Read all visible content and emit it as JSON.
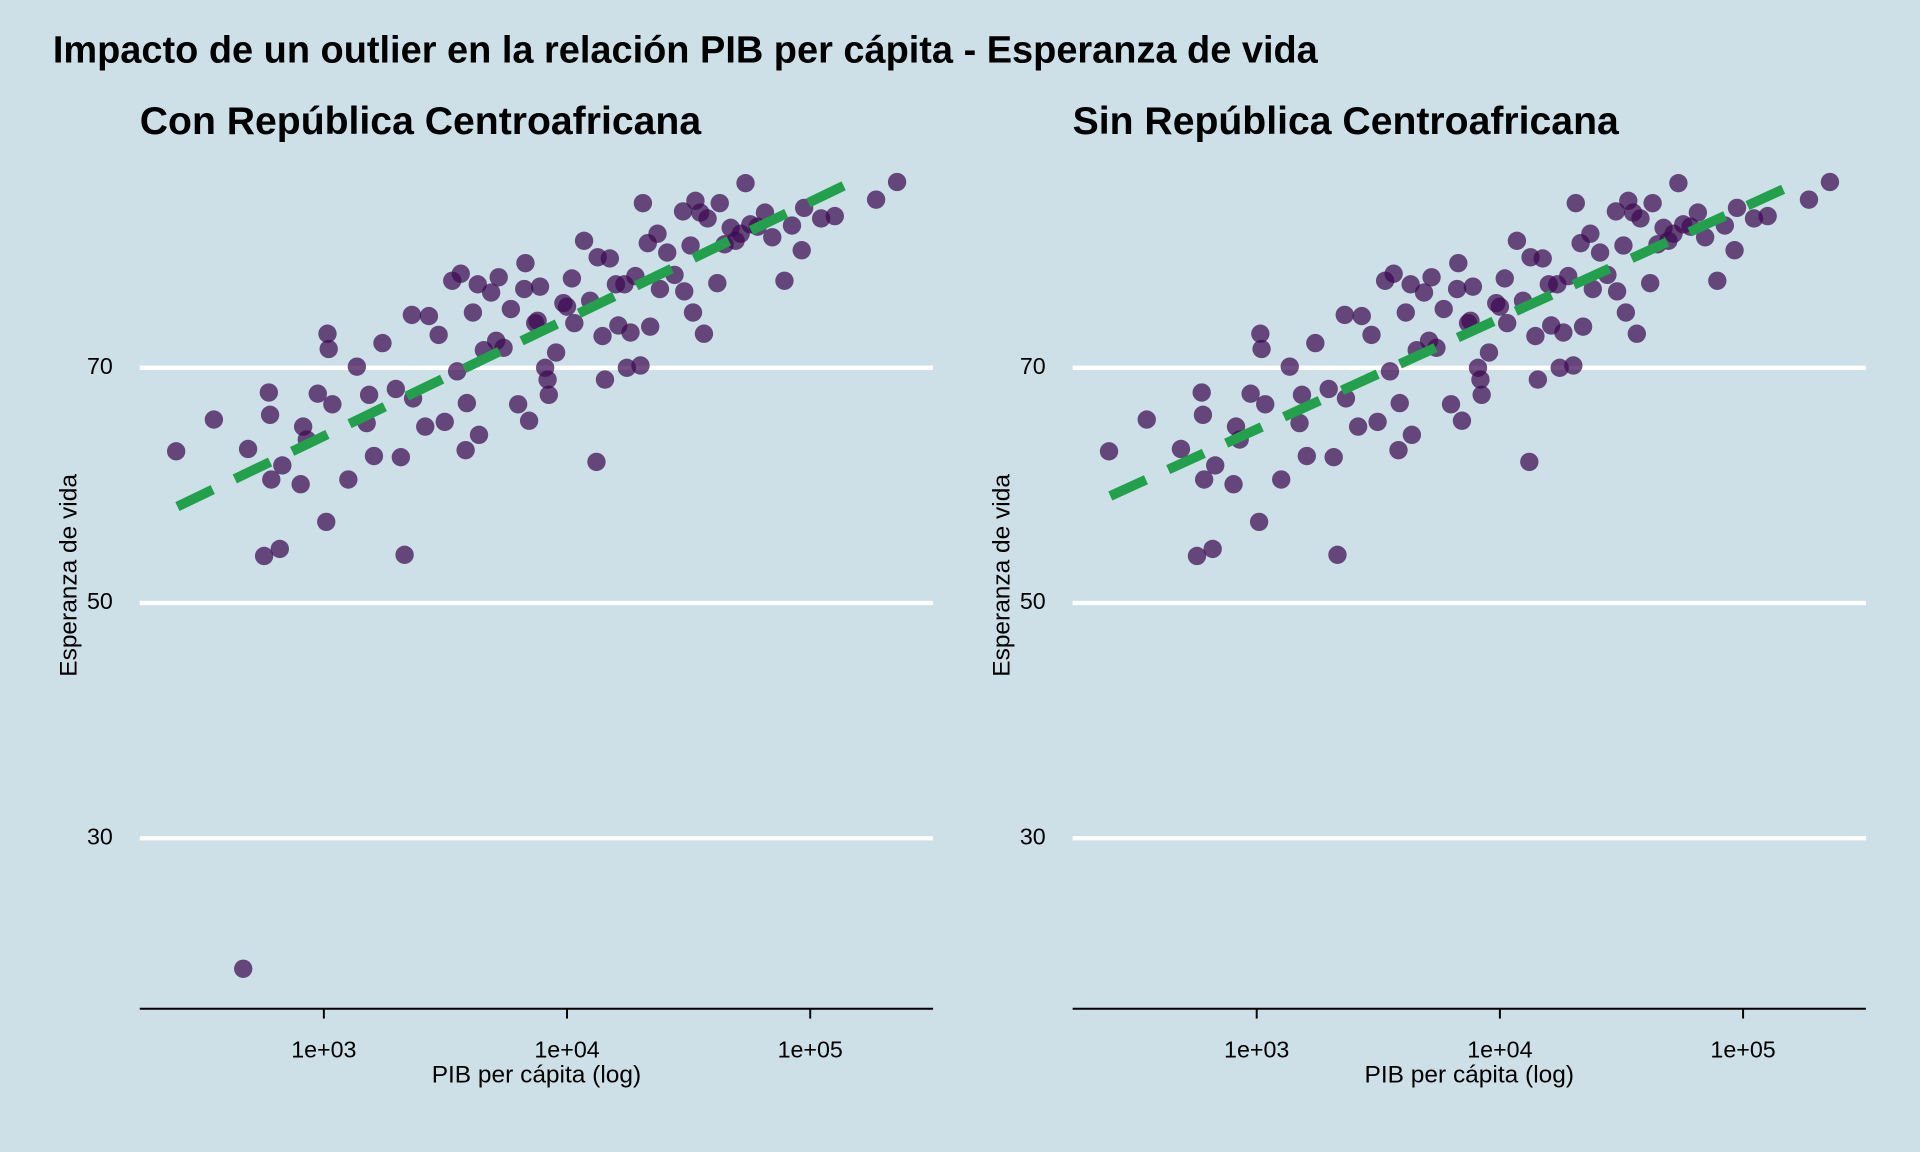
{
  "title": "Impacto de un outlier en la relación PIB per cápita - Esperanza de vida",
  "chart_data": [
    {
      "type": "scatter",
      "title": "Con República Centroafricana",
      "x_label": "PIB per cápita (log)",
      "y_label": "Esperanza de vida",
      "xscale": "log",
      "xlim": [
        175,
        320000
      ],
      "ylim": [
        15.5,
        89.2
      ],
      "xticks": [
        {
          "value": 1000,
          "label": "1e+03"
        },
        {
          "value": 10000,
          "label": "1e+04"
        },
        {
          "value": 100000,
          "label": "1e+05"
        }
      ],
      "yticks": [
        30,
        50,
        70
      ],
      "grid": true,
      "color": "#3d0a52",
      "x": [
        247,
        353,
        466,
        488,
        568,
        594,
        601,
        608,
        659,
        675,
        822,
        803,
        851,
        944,
        1023,
        1035,
        1047,
        1084,
        1261,
        1367,
        1500,
        1535,
        1607,
        1742,
        1977,
        2073,
        2148,
        2301,
        2328,
        2612,
        2704,
        2965,
        3141,
        3373,
        3532,
        3656,
        3828,
        3873,
        4102,
        4295,
        4345,
        4550,
        4875,
        5112,
        5236,
        5483,
        5875,
        6295,
        6668,
        6745,
        6982,
        7397,
        7568,
        7744,
        8128,
        8318,
        8414,
        9016,
        9660,
        10000,
        10471,
        10715,
        11749,
        12445,
        13213,
        13366,
        13996,
        14322,
        14997,
        15886,
        16255,
        17219,
        17620,
        18239,
        19099,
        20045,
        20512,
        21478,
        21979,
        23550,
        24099,
        25823,
        27669,
        29991,
        30339,
        32211,
        32961,
        33729,
        35318,
        36559,
        37844,
        41493,
        42462,
        44463,
        47098,
        49317,
        51761,
        54200,
        56750,
        60810,
        65160,
        69820,
        78340,
        84140,
        92260,
        94410,
        110900,
        126200,
        186600,
        227600
      ],
      "y": [
        62.9,
        65.6,
        18.9,
        63.1,
        54,
        67.9,
        66,
        60.5,
        54.6,
        61.7,
        65,
        60.1,
        63.9,
        67.8,
        56.9,
        72.9,
        71.6,
        66.9,
        60.5,
        70.1,
        65.3,
        67.7,
        62.5,
        72.1,
        68.2,
        62.4,
        54.1,
        74.5,
        67.4,
        65,
        74.4,
        72.8,
        65.4,
        77.4,
        69.7,
        78,
        63,
        67,
        74.7,
        77.1,
        64.3,
        71.5,
        76.4,
        72.3,
        77.7,
        71.7,
        75,
        66.9,
        76.7,
        78.9,
        65.5,
        73.8,
        74,
        76.9,
        70,
        69,
        67.7,
        71.3,
        75.5,
        75.2,
        77.6,
        73.8,
        80.8,
        75.7,
        62,
        79.4,
        72.7,
        69,
        79.3,
        77.1,
        73.6,
        77.1,
        70,
        73,
        77.8,
        70.2,
        84,
        80.6,
        73.5,
        81.4,
        76.7,
        79.8,
        77.9,
        83.3,
        76.5,
        80.4,
        74.7,
        84.2,
        83.2,
        72.9,
        82.7,
        77.2,
        84,
        80.5,
        81.9,
        80.8,
        81.4,
        85.7,
        82.2,
        82,
        83.2,
        81.1,
        77.4,
        82.1,
        80,
        83.6,
        82.7,
        82.9,
        84.3,
        85.8
      ],
      "trend": {
        "color": "#22a04c",
        "style": "dashed",
        "x": [
          250,
          148000
        ],
        "y": [
          58.2,
          85.8
        ]
      }
    },
    {
      "type": "scatter",
      "title": "Sin República Centroafricana",
      "x_label": "PIB per cápita (log)",
      "y_label": "Esperanza de vida",
      "xscale": "log",
      "xlim": [
        175,
        320000
      ],
      "ylim": [
        15.5,
        89.2
      ],
      "xticks": [
        {
          "value": 1000,
          "label": "1e+03"
        },
        {
          "value": 10000,
          "label": "1e+04"
        },
        {
          "value": 100000,
          "label": "1e+05"
        }
      ],
      "yticks": [
        30,
        50,
        70
      ],
      "grid": true,
      "color": "#3d0a52",
      "x": [
        247,
        353,
        488,
        568,
        594,
        601,
        608,
        659,
        675,
        822,
        803,
        851,
        944,
        1023,
        1035,
        1047,
        1084,
        1261,
        1367,
        1500,
        1535,
        1607,
        1742,
        1977,
        2073,
        2148,
        2301,
        2328,
        2612,
        2704,
        2965,
        3141,
        3373,
        3532,
        3656,
        3828,
        3873,
        4102,
        4295,
        4345,
        4550,
        4875,
        5112,
        5236,
        5483,
        5875,
        6295,
        6668,
        6745,
        6982,
        7397,
        7568,
        7744,
        8128,
        8318,
        8414,
        9016,
        9660,
        10000,
        10471,
        10715,
        11749,
        12445,
        13213,
        13366,
        13996,
        14322,
        14997,
        15886,
        16255,
        17219,
        17620,
        18239,
        19099,
        20045,
        20512,
        21478,
        21979,
        23550,
        24099,
        25823,
        27669,
        29991,
        30339,
        32211,
        32961,
        33729,
        35318,
        36559,
        37844,
        41493,
        42462,
        44463,
        47098,
        49317,
        51761,
        54200,
        56750,
        60810,
        65160,
        69820,
        78340,
        84140,
        92260,
        94410,
        110900,
        126200,
        186600,
        227600
      ],
      "y": [
        62.9,
        65.6,
        63.1,
        54,
        67.9,
        66,
        60.5,
        54.6,
        61.7,
        65,
        60.1,
        63.9,
        67.8,
        56.9,
        72.9,
        71.6,
        66.9,
        60.5,
        70.1,
        65.3,
        67.7,
        62.5,
        72.1,
        68.2,
        62.4,
        54.1,
        74.5,
        67.4,
        65,
        74.4,
        72.8,
        65.4,
        77.4,
        69.7,
        78,
        63,
        67,
        74.7,
        77.1,
        64.3,
        71.5,
        76.4,
        72.3,
        77.7,
        71.7,
        75,
        66.9,
        76.7,
        78.9,
        65.5,
        73.8,
        74,
        76.9,
        70,
        69,
        67.7,
        71.3,
        75.5,
        75.2,
        77.6,
        73.8,
        80.8,
        75.7,
        62,
        79.4,
        72.7,
        69,
        79.3,
        77.1,
        73.6,
        77.1,
        70,
        73,
        77.8,
        70.2,
        84,
        80.6,
        73.5,
        81.4,
        76.7,
        79.8,
        77.9,
        83.3,
        76.5,
        80.4,
        74.7,
        84.2,
        83.2,
        72.9,
        82.7,
        77.2,
        84,
        80.5,
        81.9,
        80.8,
        81.4,
        85.7,
        82.2,
        82,
        83.2,
        81.1,
        77.4,
        82.1,
        80,
        83.6,
        82.7,
        82.9,
        84.3,
        85.8
      ],
      "trend": {
        "color": "#22a04c",
        "style": "dashed",
        "x": [
          250,
          170000
        ],
        "y": [
          59.1,
          85.8
        ]
      }
    }
  ]
}
